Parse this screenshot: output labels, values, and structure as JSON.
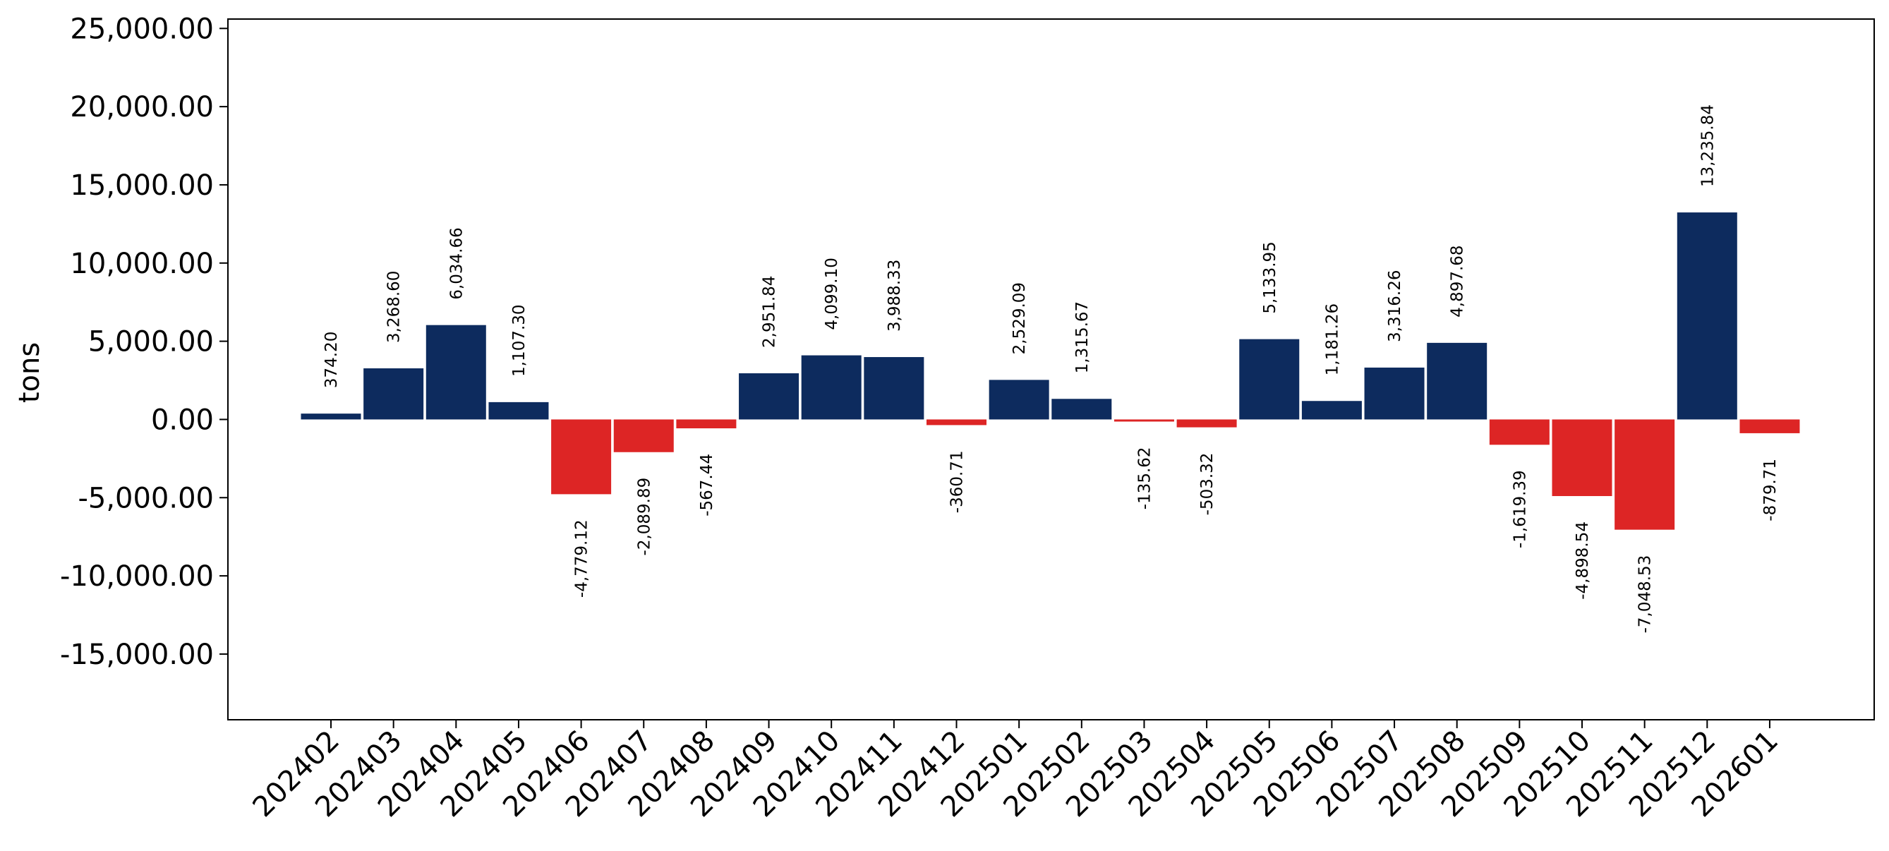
{
  "chart_data": {
    "type": "bar",
    "title": "",
    "xlabel": "",
    "ylabel": "tons",
    "ylim": [
      -19200,
      25600
    ],
    "yticks": [
      -15000,
      -10000,
      -5000,
      0,
      5000,
      10000,
      15000,
      20000,
      25000
    ],
    "ytick_labels": [
      "-15,000.00",
      "-10,000.00",
      "-5,000.00",
      "0.00",
      "5,000.00",
      "10,000.00",
      "15,000.00",
      "20,000.00",
      "25,000.00"
    ],
    "grid": false,
    "legend": "none",
    "colors": {
      "positive": "#0d2b5e",
      "negative": "#dd2525"
    },
    "categories": [
      "202402",
      "202403",
      "202404",
      "202405",
      "202406",
      "202407",
      "202408",
      "202409",
      "202410",
      "202411",
      "202412",
      "202501",
      "202502",
      "202503",
      "202504",
      "202505",
      "202506",
      "202507",
      "202508",
      "202509",
      "202510",
      "202511",
      "202512",
      "202601"
    ],
    "values": [
      374.2,
      3268.6,
      6034.66,
      1107.3,
      -4779.12,
      -2089.89,
      -567.44,
      2951.84,
      4099.1,
      3988.33,
      -360.71,
      2529.09,
      1315.67,
      -135.62,
      -503.32,
      5133.95,
      1181.26,
      3316.26,
      4897.68,
      -1619.39,
      -4898.54,
      -7048.53,
      13235.84,
      -879.71
    ],
    "value_labels": [
      "374.20",
      "3,268.60",
      "6,034.66",
      "1,107.30",
      "-4,779.12",
      "-2,089.89",
      "-567.44",
      "2,951.84",
      "4,099.10",
      "3,988.33",
      "-360.71",
      "2,529.09",
      "1,315.67",
      "-135.62",
      "-503.32",
      "5,133.95",
      "1,181.26",
      "3,316.26",
      "4,897.68",
      "-1,619.39",
      "-4,898.54",
      "-7,048.53",
      "13,235.84",
      "-879.71"
    ]
  }
}
